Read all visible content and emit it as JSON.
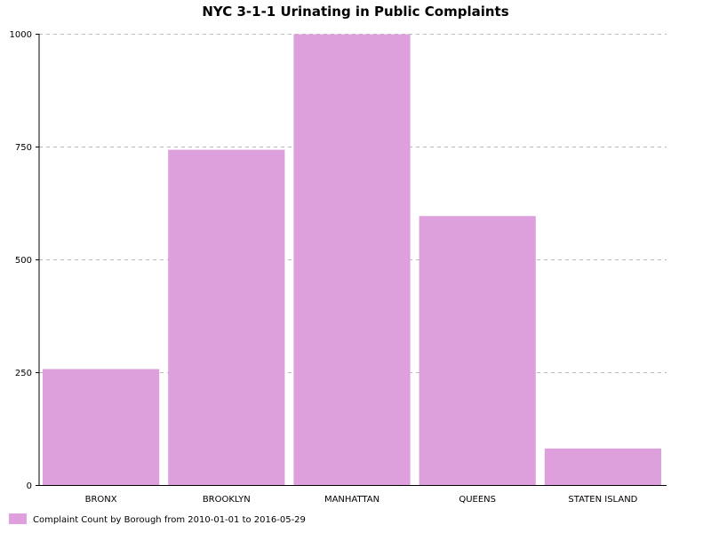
{
  "chart_data": {
    "type": "bar",
    "title": "NYC 3-1-1 Urinating in Public Complaints",
    "categories": [
      "BRONX",
      "BROOKLYN",
      "MANHATTAN",
      "QUEENS",
      "STATEN ISLAND"
    ],
    "series": [
      {
        "name": "Complaint Count by Borough from 2010-01-01 to 2016-05-29",
        "values": [
          257,
          743,
          999,
          596,
          81
        ],
        "color": "#dda0dd"
      }
    ],
    "ylim": [
      0,
      1000
    ],
    "yticks": [
      0,
      250,
      500,
      750,
      1000
    ],
    "grid": true,
    "legend": "bottom-left",
    "xlabel": "",
    "ylabel": ""
  }
}
